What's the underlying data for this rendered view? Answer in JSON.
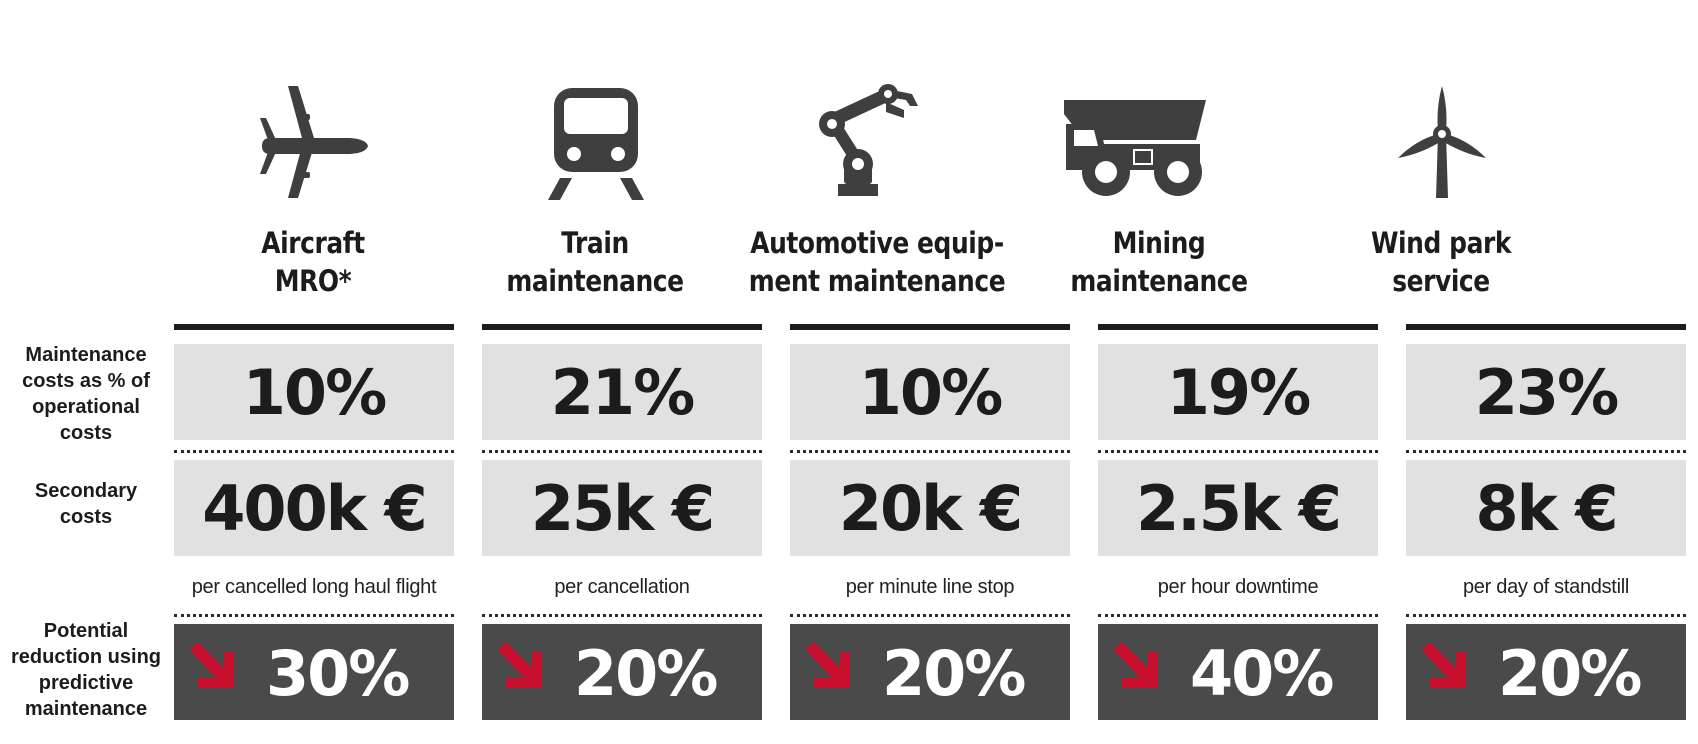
{
  "row_labels": {
    "maintenance": [
      "Maintenance",
      "costs as % of",
      "operational",
      "costs"
    ],
    "secondary": [
      "Secondary",
      "costs"
    ],
    "reduction": [
      "Potential",
      "reduction using",
      "predictive",
      "maintenance"
    ]
  },
  "columns": [
    {
      "icon": "airplane-icon",
      "title": [
        "Aircraft",
        "MRO*"
      ],
      "maintenance_pct": "10%",
      "secondary_cost": "400k €",
      "note": "per cancelled long haul flight",
      "reduction": "30%"
    },
    {
      "icon": "train-icon",
      "title": [
        "Train",
        "maintenance"
      ],
      "maintenance_pct": "21%",
      "secondary_cost": "25k €",
      "note": "per cancellation",
      "reduction": "20%"
    },
    {
      "icon": "robot-arm-icon",
      "title": [
        "Automotive equip-",
        "ment maintenance"
      ],
      "maintenance_pct": "10%",
      "secondary_cost": "20k €",
      "note": "per minute line stop",
      "reduction": "20%"
    },
    {
      "icon": "dump-truck-icon",
      "title": [
        "Mining",
        "maintenance"
      ],
      "maintenance_pct": "19%",
      "secondary_cost": "2.5k €",
      "note": "per hour downtime",
      "reduction": "40%"
    },
    {
      "icon": "wind-turbine-icon",
      "title": [
        "Wind park",
        "service"
      ],
      "maintenance_pct": "23%",
      "secondary_cost": "8k €",
      "note": "per day of standstill",
      "reduction": "20%"
    }
  ],
  "colors": {
    "icon": "#3f3f3f",
    "arrow": "#c8102e",
    "dark_box": "#4a4a4a",
    "light_box": "#e1e1e1"
  }
}
